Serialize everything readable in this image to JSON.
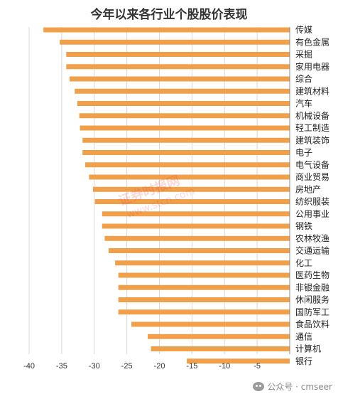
{
  "chart_data": {
    "type": "bar",
    "orientation": "horizontal",
    "title": "今年以来各行业个股股价表现",
    "xlabel": "",
    "ylabel": "",
    "xlim": [
      -40,
      0
    ],
    "xticks": [
      -40,
      -35,
      -30,
      -25,
      -20,
      -15,
      -10,
      -5
    ],
    "grid": true,
    "legend": "none",
    "bar_color": "#F0A04B",
    "categories": [
      "传媒",
      "有色金属",
      "采掘",
      "家用电器",
      "综合",
      "建筑材料",
      "汽车",
      "机械设备",
      "轻工制造",
      "建筑装饰",
      "电子",
      "电气设备",
      "商业贸易",
      "房地产",
      "纺织服装",
      "公用事业",
      "钢铁",
      "农林牧渔",
      "交通运输",
      "化工",
      "医药生物",
      "非银金融",
      "休闲服务",
      "国防军工",
      "食品饮料",
      "通信",
      "计算机",
      "银行"
    ],
    "values": [
      -37.8,
      -35.3,
      -34.3,
      -34.3,
      -33.8,
      -33.0,
      -32.6,
      -32.3,
      -32.2,
      -31.8,
      -31.8,
      -31.4,
      -30.8,
      -30.2,
      -29.9,
      -28.8,
      -28.8,
      -28.4,
      -27.8,
      -26.8,
      -26.3,
      -26.3,
      -26.3,
      -26.3,
      -24.3,
      -21.8,
      -21.3,
      -15.8
    ]
  },
  "watermark": {
    "text": "证券时报网 www.stcn.com",
    "color": "#e03030"
  },
  "wechat": {
    "label": "公众号 · cmseer",
    "icon": "wechat-icon"
  }
}
